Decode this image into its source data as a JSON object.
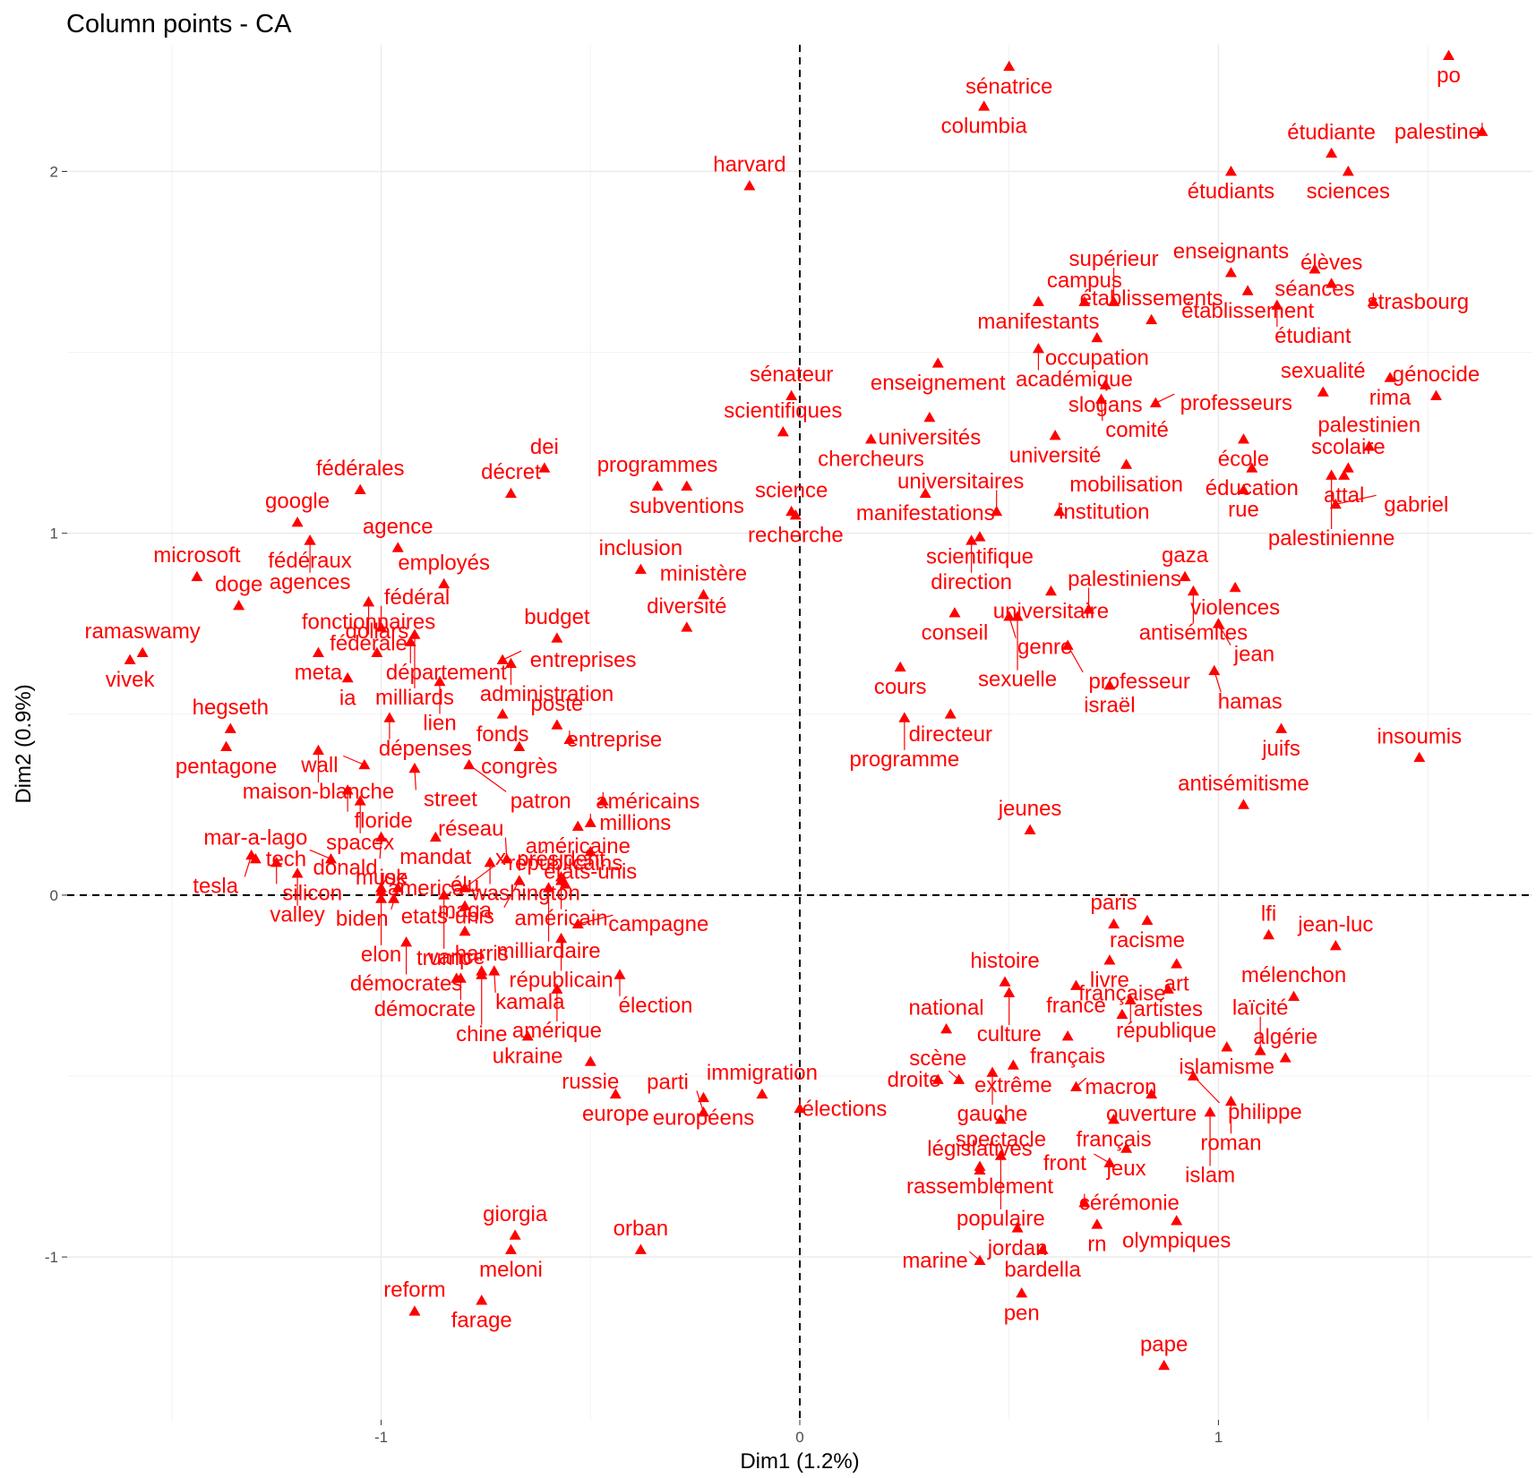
{
  "chart_data": {
    "type": "scatter",
    "title": "Column points - CA",
    "xlabel": "Dim1 (1.2%)",
    "ylabel": "Dim2 (0.9%)",
    "xlim": [
      -1.75,
      1.75
    ],
    "ylim": [
      -1.45,
      2.35
    ],
    "x_ticks": [
      -1,
      0,
      1
    ],
    "y_ticks": [
      -1,
      0,
      1,
      2
    ],
    "grid": true,
    "reference_lines": {
      "x": 0,
      "y": 0,
      "style": "dashed"
    },
    "color": "#ff0000",
    "marker": "triangle",
    "points": [
      {
        "label": "po",
        "x": 1.55,
        "y": 2.32
      },
      {
        "label": "palestine",
        "x": 1.63,
        "y": 2.11
      },
      {
        "label": "sénatrice",
        "x": 0.5,
        "y": 2.29
      },
      {
        "label": "columbia",
        "x": 0.44,
        "y": 2.18
      },
      {
        "label": "étudiante",
        "x": 1.27,
        "y": 2.05
      },
      {
        "label": "étudiants",
        "x": 1.03,
        "y": 2.0
      },
      {
        "label": "sciences",
        "x": 1.31,
        "y": 2.0
      },
      {
        "label": "harvard",
        "x": -0.12,
        "y": 1.96
      },
      {
        "label": "enseignants",
        "x": 1.03,
        "y": 1.72
      },
      {
        "label": "séances",
        "x": 1.23,
        "y": 1.73
      },
      {
        "label": "élèves",
        "x": 1.27,
        "y": 1.69
      },
      {
        "label": "établissement",
        "x": 1.07,
        "y": 1.67
      },
      {
        "label": "strasbourg",
        "x": 1.37,
        "y": 1.64
      },
      {
        "label": "campus",
        "x": 0.68,
        "y": 1.64
      },
      {
        "label": "manifestants",
        "x": 0.57,
        "y": 1.64
      },
      {
        "label": "supérieur",
        "x": 0.75,
        "y": 1.64
      },
      {
        "label": "étudiant",
        "x": 1.14,
        "y": 1.63
      },
      {
        "label": "occupation",
        "x": 0.71,
        "y": 1.54
      },
      {
        "label": "académique",
        "x": 0.57,
        "y": 1.51
      },
      {
        "label": "établissements",
        "x": 0.84,
        "y": 1.59
      },
      {
        "label": "enseignement",
        "x": 0.33,
        "y": 1.47
      },
      {
        "label": "slogans",
        "x": 0.73,
        "y": 1.41
      },
      {
        "label": "sénateur",
        "x": -0.02,
        "y": 1.38
      },
      {
        "label": "sexualité",
        "x": 1.25,
        "y": 1.39
      },
      {
        "label": "rima",
        "x": 1.41,
        "y": 1.43
      },
      {
        "label": "génocide",
        "x": 1.52,
        "y": 1.38
      },
      {
        "label": "comité",
        "x": 0.72,
        "y": 1.37
      },
      {
        "label": "professeurs",
        "x": 0.85,
        "y": 1.36
      },
      {
        "label": "universités",
        "x": 0.31,
        "y": 1.32
      },
      {
        "label": "scientifiques",
        "x": -0.04,
        "y": 1.28
      },
      {
        "label": "école",
        "x": 1.06,
        "y": 1.26
      },
      {
        "label": "palestinien",
        "x": 1.36,
        "y": 1.24
      },
      {
        "label": "chercheurs",
        "x": 0.17,
        "y": 1.26
      },
      {
        "label": "université",
        "x": 0.61,
        "y": 1.27
      },
      {
        "label": "mobilisation",
        "x": 0.78,
        "y": 1.19
      },
      {
        "label": "éducation",
        "x": 1.08,
        "y": 1.18
      },
      {
        "label": "scolaire",
        "x": 1.31,
        "y": 1.18
      },
      {
        "label": "dei",
        "x": -0.61,
        "y": 1.18
      },
      {
        "label": "programmes",
        "x": -0.34,
        "y": 1.13
      },
      {
        "label": "décret",
        "x": -0.69,
        "y": 1.11
      },
      {
        "label": "subventions",
        "x": -0.27,
        "y": 1.13
      },
      {
        "label": "fédérales",
        "x": -1.05,
        "y": 1.12
      },
      {
        "label": "manifestations",
        "x": 0.3,
        "y": 1.11
      },
      {
        "label": "rue",
        "x": 1.06,
        "y": 1.12
      },
      {
        "label": "attal",
        "x": 1.3,
        "y": 1.16
      },
      {
        "label": "universitaires",
        "x": 0.47,
        "y": 1.06
      },
      {
        "label": "institution",
        "x": 0.62,
        "y": 1.06
      },
      {
        "label": "science",
        "x": -0.02,
        "y": 1.06
      },
      {
        "label": "palestinienne",
        "x": 1.27,
        "y": 1.16
      },
      {
        "label": "gabriel",
        "x": 1.28,
        "y": 1.08
      },
      {
        "label": "google",
        "x": -1.2,
        "y": 1.03
      },
      {
        "label": "fédéraux",
        "x": -1.17,
        "y": 0.98
      },
      {
        "label": "agences",
        "x": -1.17,
        "y": 0.98
      },
      {
        "label": "recherche",
        "x": -0.01,
        "y": 1.05
      },
      {
        "label": "scientifique",
        "x": 0.43,
        "y": 0.99
      },
      {
        "label": "agence",
        "x": -0.96,
        "y": 0.96
      },
      {
        "label": "direction",
        "x": 0.41,
        "y": 0.98
      },
      {
        "label": "inclusion",
        "x": -0.38,
        "y": 0.9
      },
      {
        "label": "gaza",
        "x": 0.92,
        "y": 0.88
      },
      {
        "label": "microsoft",
        "x": -1.44,
        "y": 0.88
      },
      {
        "label": "fonctionnaires",
        "x": -1.03,
        "y": 0.81
      },
      {
        "label": "employés",
        "x": -0.85,
        "y": 0.86
      },
      {
        "label": "budget",
        "x": -0.58,
        "y": 0.71
      },
      {
        "label": "violences",
        "x": 1.04,
        "y": 0.85
      },
      {
        "label": "universitaire",
        "x": 0.6,
        "y": 0.84
      },
      {
        "label": "fédérale",
        "x": -1.03,
        "y": 0.81
      },
      {
        "label": "département",
        "x": -0.93,
        "y": 0.7
      },
      {
        "label": "ministère",
        "x": -0.23,
        "y": 0.83
      },
      {
        "label": "conseil",
        "x": 0.37,
        "y": 0.78
      },
      {
        "label": "antisémites",
        "x": 0.94,
        "y": 0.84
      },
      {
        "label": "palestiniens",
        "x": 0.69,
        "y": 0.79
      },
      {
        "label": "administration",
        "x": -0.69,
        "y": 0.64
      },
      {
        "label": "doge",
        "x": -1.34,
        "y": 0.8
      },
      {
        "label": "fédéral",
        "x": -1.0,
        "y": 0.74
      },
      {
        "label": "ramaswamy",
        "x": -1.57,
        "y": 0.67
      },
      {
        "label": "genre",
        "x": 0.5,
        "y": 0.77
      },
      {
        "label": "sexuelle",
        "x": 0.52,
        "y": 0.77
      },
      {
        "label": "milliards",
        "x": -0.92,
        "y": 0.72
      },
      {
        "label": "diversité",
        "x": -0.27,
        "y": 0.74
      },
      {
        "label": "jean",
        "x": 1.0,
        "y": 0.75
      },
      {
        "label": "meta",
        "x": -1.15,
        "y": 0.67
      },
      {
        "label": "dollars",
        "x": -1.01,
        "y": 0.67
      },
      {
        "label": "vivek",
        "x": -1.6,
        "y": 0.65
      },
      {
        "label": "cours",
        "x": 0.24,
        "y": 0.63
      },
      {
        "label": "professeur",
        "x": 0.64,
        "y": 0.69
      },
      {
        "label": "entreprises",
        "x": -0.71,
        "y": 0.65
      },
      {
        "label": "lien",
        "x": -0.86,
        "y": 0.59
      },
      {
        "label": "hamas",
        "x": 0.99,
        "y": 0.62
      },
      {
        "label": "ia",
        "x": -1.08,
        "y": 0.6
      },
      {
        "label": "dépenses",
        "x": -0.98,
        "y": 0.49
      },
      {
        "label": "israël",
        "x": 0.74,
        "y": 0.58
      },
      {
        "label": "hegseth",
        "x": -1.36,
        "y": 0.46
      },
      {
        "label": "directeur",
        "x": 0.36,
        "y": 0.5
      },
      {
        "label": "fonds",
        "x": -0.71,
        "y": 0.5
      },
      {
        "label": "programme",
        "x": 0.25,
        "y": 0.49
      },
      {
        "label": "juifs",
        "x": 1.15,
        "y": 0.46
      },
      {
        "label": "insoumis",
        "x": 1.48,
        "y": 0.38
      },
      {
        "label": "pentagone",
        "x": -1.37,
        "y": 0.41
      },
      {
        "label": "maison-blanche",
        "x": -1.15,
        "y": 0.4
      },
      {
        "label": "congrès",
        "x": -0.67,
        "y": 0.41
      },
      {
        "label": "entreprise",
        "x": -0.55,
        "y": 0.43
      },
      {
        "label": "wall",
        "x": -1.04,
        "y": 0.36
      },
      {
        "label": "street",
        "x": -0.92,
        "y": 0.35
      },
      {
        "label": "floride",
        "x": -1.08,
        "y": 0.29
      },
      {
        "label": "patron",
        "x": -0.79,
        "y": 0.36
      },
      {
        "label": "poste",
        "x": -0.58,
        "y": 0.47
      },
      {
        "label": "américains",
        "x": -0.47,
        "y": 0.26
      },
      {
        "label": "spacex",
        "x": -1.05,
        "y": 0.26
      },
      {
        "label": "antisémitisme",
        "x": 1.06,
        "y": 0.25
      },
      {
        "label": "mandat",
        "x": -0.87,
        "y": 0.16
      },
      {
        "label": "américaine",
        "x": -0.53,
        "y": 0.19
      },
      {
        "label": "millions",
        "x": -0.5,
        "y": 0.2
      },
      {
        "label": "états-unis",
        "x": -0.5,
        "y": 0.12
      },
      {
        "label": "donald",
        "x": -1.0,
        "y": 0.16
      },
      {
        "label": "jeunes",
        "x": 0.55,
        "y": 0.18
      },
      {
        "label": "tech",
        "x": -1.12,
        "y": 0.1
      },
      {
        "label": "mar-a-lago",
        "x": -1.3,
        "y": 0.1
      },
      {
        "label": "réseau",
        "x": -0.7,
        "y": 0.1
      },
      {
        "label": "washington",
        "x": -0.74,
        "y": 0.09
      },
      {
        "label": "américain",
        "x": -0.57,
        "y": 0.05
      },
      {
        "label": "etats-unis",
        "x": -0.67,
        "y": 0.04
      },
      {
        "label": "tesla",
        "x": -1.31,
        "y": 0.11
      },
      {
        "label": "silicon",
        "x": -1.25,
        "y": 0.09
      },
      {
        "label": "america",
        "x": -1.0,
        "y": 0.02
      },
      {
        "label": "x",
        "x": -0.8,
        "y": 0.02
      },
      {
        "label": "valley",
        "x": -1.2,
        "y": 0.06
      },
      {
        "label": "milliardaire",
        "x": -0.6,
        "y": 0.02
      },
      {
        "label": "président",
        "x": -0.57,
        "y": 0.04
      },
      {
        "label": "républicains",
        "x": -0.56,
        "y": 0.03
      },
      {
        "label": "elon",
        "x": -1.0,
        "y": 0.01
      },
      {
        "label": "biden",
        "x": -0.96,
        "y": 0.02
      },
      {
        "label": "trump",
        "x": -0.85,
        "y": 0.0
      },
      {
        "label": "paris",
        "x": 0.75,
        "y": -0.08
      },
      {
        "label": "racisme",
        "x": 0.83,
        "y": -0.07
      },
      {
        "label": "lfi",
        "x": 1.12,
        "y": -0.11
      },
      {
        "label": "jean-luc",
        "x": 1.28,
        "y": -0.14
      },
      {
        "label": "élu",
        "x": -0.8,
        "y": -0.03
      },
      {
        "label": "campagne",
        "x": -0.53,
        "y": -0.08
      },
      {
        "label": "républicain",
        "x": -0.57,
        "y": -0.12
      },
      {
        "label": "musk",
        "x": -1.0,
        "y": -0.01
      },
      {
        "label": "joe",
        "x": -0.97,
        "y": -0.01
      },
      {
        "label": "livre",
        "x": 0.74,
        "y": -0.18
      },
      {
        "label": "art",
        "x": 0.9,
        "y": -0.19
      },
      {
        "label": "démocrates",
        "x": -0.94,
        "y": -0.13
      },
      {
        "label": "histoire",
        "x": 0.49,
        "y": -0.24
      },
      {
        "label": "france",
        "x": 0.66,
        "y": -0.25
      },
      {
        "label": "élection",
        "x": -0.43,
        "y": -0.22
      },
      {
        "label": "mélenchon",
        "x": 1.18,
        "y": -0.28
      },
      {
        "label": "kamala",
        "x": -0.73,
        "y": -0.21
      },
      {
        "label": "maga",
        "x": -0.8,
        "y": -0.1
      },
      {
        "label": "démocrate",
        "x": -0.81,
        "y": -0.23
      },
      {
        "label": "amérique",
        "x": -0.58,
        "y": -0.26
      },
      {
        "label": "artistes",
        "x": 0.88,
        "y": -0.26
      },
      {
        "label": "république",
        "x": 0.79,
        "y": -0.29
      },
      {
        "label": "national",
        "x": 0.35,
        "y": -0.37
      },
      {
        "label": "culture",
        "x": 0.5,
        "y": -0.27
      },
      {
        "label": "chine",
        "x": -0.76,
        "y": -0.21
      },
      {
        "label": "islamisme",
        "x": 1.02,
        "y": -0.42
      },
      {
        "label": "harris",
        "x": -0.76,
        "y": -0.22
      },
      {
        "label": "vance",
        "x": -0.82,
        "y": -0.23
      },
      {
        "label": "français",
        "x": 0.64,
        "y": -0.39
      },
      {
        "label": "française",
        "x": 0.77,
        "y": -0.33
      },
      {
        "label": "algérie",
        "x": 1.16,
        "y": -0.45
      },
      {
        "label": "extrême",
        "x": 0.51,
        "y": -0.47
      },
      {
        "label": "gauche",
        "x": 0.46,
        "y": -0.49
      },
      {
        "label": "laïcité",
        "x": 1.1,
        "y": -0.43
      },
      {
        "label": "ukraine",
        "x": -0.65,
        "y": -0.39
      },
      {
        "label": "russie",
        "x": -0.5,
        "y": -0.46
      },
      {
        "label": "europe",
        "x": -0.44,
        "y": -0.55
      },
      {
        "label": "immigration",
        "x": -0.09,
        "y": -0.55
      },
      {
        "label": "ouverture",
        "x": 0.84,
        "y": -0.55
      },
      {
        "label": "philippe",
        "x": 0.94,
        "y": -0.5
      },
      {
        "label": "scène",
        "x": 0.33,
        "y": -0.51
      },
      {
        "label": "macron",
        "x": 0.66,
        "y": -0.53
      },
      {
        "label": "droite",
        "x": 0.38,
        "y": -0.51
      },
      {
        "label": "roman",
        "x": 1.03,
        "y": -0.57
      },
      {
        "label": "européens",
        "x": -0.23,
        "y": -0.56
      },
      {
        "label": "parti",
        "x": -0.23,
        "y": -0.6
      },
      {
        "label": "élections",
        "x": 0.0,
        "y": -0.59
      },
      {
        "label": "français",
        "x": 0.75,
        "y": -0.62
      },
      {
        "label": "islam",
        "x": 0.98,
        "y": -0.6
      },
      {
        "label": "spectacle",
        "x": 0.48,
        "y": -0.62
      },
      {
        "label": "jeux",
        "x": 0.78,
        "y": -0.7
      },
      {
        "label": "rassemblement",
        "x": 0.43,
        "y": -0.75
      },
      {
        "label": "populaire",
        "x": 0.48,
        "y": -0.72
      },
      {
        "label": "front",
        "x": 0.74,
        "y": -0.74
      },
      {
        "label": "législatives",
        "x": 0.43,
        "y": -0.76
      },
      {
        "label": "cérémonie",
        "x": 0.68,
        "y": -0.85
      },
      {
        "label": "rn",
        "x": 0.71,
        "y": -0.91
      },
      {
        "label": "olympiques",
        "x": 0.9,
        "y": -0.9
      },
      {
        "label": "giorgia",
        "x": -0.68,
        "y": -0.94
      },
      {
        "label": "jordan",
        "x": 0.52,
        "y": -0.92
      },
      {
        "label": "meloni",
        "x": -0.69,
        "y": -0.98
      },
      {
        "label": "orban",
        "x": -0.38,
        "y": -0.98
      },
      {
        "label": "bardella",
        "x": 0.58,
        "y": -0.98
      },
      {
        "label": "marine",
        "x": 0.43,
        "y": -1.01
      },
      {
        "label": "farage",
        "x": -0.76,
        "y": -1.12
      },
      {
        "label": "reform",
        "x": -0.92,
        "y": -1.15
      },
      {
        "label": "pen",
        "x": 0.53,
        "y": -1.1
      },
      {
        "label": "pape",
        "x": 0.87,
        "y": -1.3
      }
    ]
  }
}
